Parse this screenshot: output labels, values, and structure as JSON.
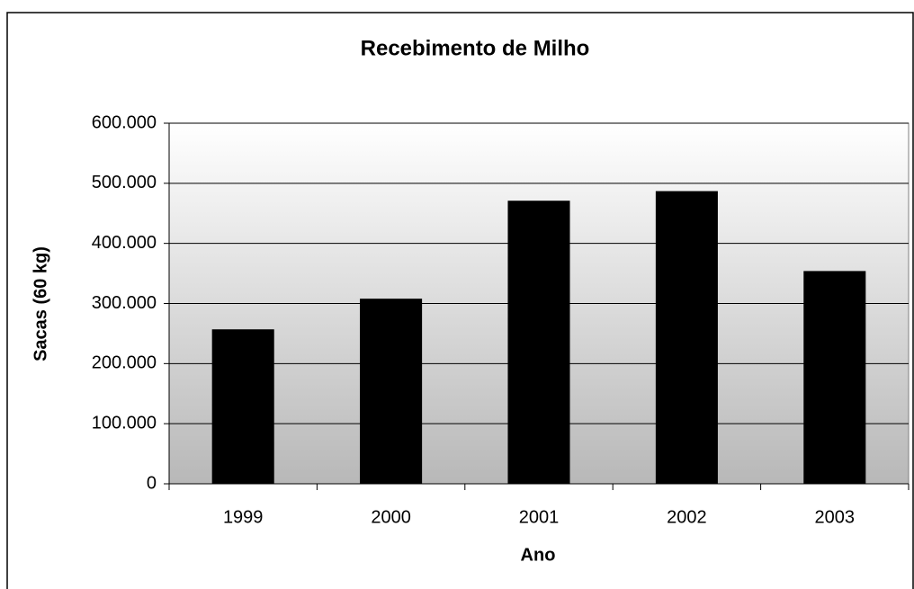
{
  "chart_data": {
    "type": "bar",
    "title": "Recebimento de Milho",
    "x_label": "Ano",
    "y_label": "Sacas (60 kg)",
    "categories": [
      "1999",
      "2000",
      "2001",
      "2002",
      "2003"
    ],
    "values": [
      257000,
      308000,
      471000,
      487000,
      354000
    ],
    "color": "#000000",
    "ylim": [
      0,
      600000
    ],
    "yticks": [
      0,
      {
        "value": 100000,
        "label": "100.000"
      },
      {
        "value": 200000,
        "label": "200.000"
      },
      {
        "value": 300000,
        "label": "300.000"
      },
      {
        "value": 400000,
        "label": "400.000"
      },
      {
        "value": 500000,
        "label": "500.000"
      },
      {
        "value": 600000,
        "label": "600.000"
      }
    ],
    "grid": true
  }
}
